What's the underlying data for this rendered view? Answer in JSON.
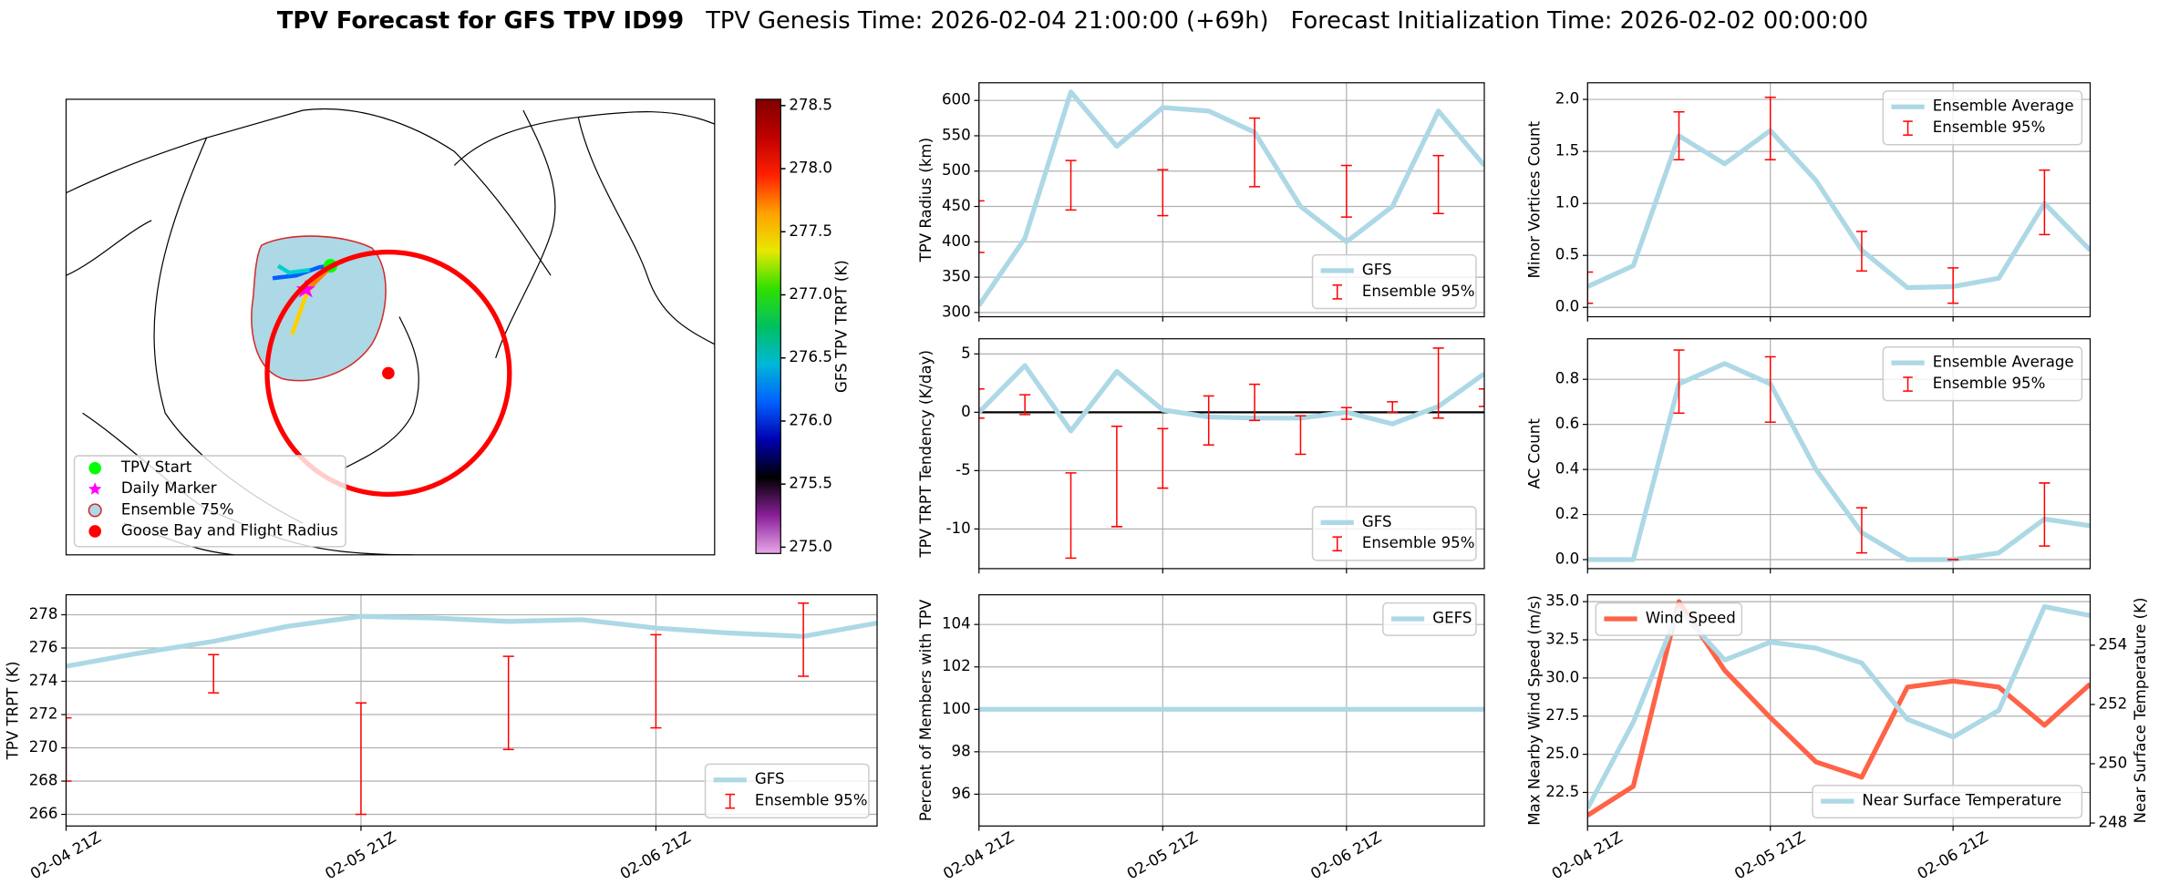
{
  "title": {
    "main": "TPV Forecast for GFS TPV ID99",
    "genesis": "TPV Genesis Time: 2026-02-04 21:00:00 (+69h)",
    "init": "Forecast Initialization Time: 2026-02-02 00:00:00"
  },
  "map": {
    "legend": [
      {
        "name": "TPV Start",
        "color": "#00ff00"
      },
      {
        "name": "Daily Marker",
        "color": "#ff00ff"
      },
      {
        "name": "Ensemble 75%",
        "color": "#add8e6",
        "edgecolor": "#d62728"
      },
      {
        "name": "Goose Bay and Flight Radius",
        "color": "#ff0000"
      }
    ]
  },
  "colorbar": {
    "label": "GFS TPV TRPT (K)",
    "lim": [
      274.95,
      278.55
    ],
    "ticks": [
      {
        "value": 275,
        "label": "275.0"
      },
      275.5,
      {
        "value": 276,
        "label": "276.0"
      },
      276.5,
      {
        "value": 277,
        "label": "277.0"
      },
      277.5,
      {
        "value": 278,
        "label": "278.0"
      },
      278.5
    ],
    "colors": [
      "#e8a8e8",
      "#8a1f9a",
      "#000000",
      "#0000b0",
      "#0060ff",
      "#00b8d8",
      "#00c060",
      "#30e000",
      "#e8e800",
      "#ffa000",
      "#ff2000",
      "#c00000",
      "#800000"
    ]
  },
  "chart_data": [
    {
      "type": "line",
      "ylabel": "TPV Radius (km)",
      "xlim": [
        0,
        66
      ],
      "xticks": [
        0,
        24,
        48
      ],
      "ylim": [
        294,
        625
      ],
      "yticks": [
        300,
        350,
        400,
        450,
        500,
        550,
        600
      ],
      "grid": true,
      "legend": "lower right",
      "series": [
        {
          "name": "GFS",
          "color": "#add8e6",
          "x": [
            0,
            6,
            12,
            18,
            24,
            30,
            36,
            42,
            48,
            54,
            60,
            66
          ],
          "values": [
            310,
            405,
            612,
            535,
            590,
            585,
            555,
            450,
            400,
            450,
            585,
            508
          ]
        },
        {
          "name": "Ensemble 95%",
          "type": "errorbar",
          "color": "#ff0000",
          "x": [
            0,
            12,
            24,
            36,
            48,
            60
          ],
          "low": [
            385,
            445,
            437,
            478,
            435,
            440
          ],
          "high": [
            458,
            515,
            502,
            575,
            508,
            522
          ]
        }
      ]
    },
    {
      "type": "line",
      "ylabel": "TPV TRPT Tendency (K/day)",
      "xlim": [
        0,
        66
      ],
      "xticks": [
        0,
        24,
        48
      ],
      "ylim": [
        -13.4,
        6.3
      ],
      "yticks": [
        -10,
        -5,
        0,
        5
      ],
      "grid": true,
      "legend": "lower right",
      "hline": 0,
      "series": [
        {
          "name": "GFS",
          "color": "#add8e6",
          "x": [
            0,
            6,
            12,
            18,
            24,
            30,
            36,
            42,
            48,
            54,
            60,
            66
          ],
          "values": [
            0,
            4,
            -1.6,
            3.5,
            0.2,
            -0.4,
            -0.5,
            -0.5,
            0,
            -1.0,
            0.5,
            3.3
          ]
        },
        {
          "name": "Ensemble 95%",
          "type": "errorbar",
          "color": "#ff0000",
          "x": [
            0,
            6,
            12,
            18,
            24,
            30,
            36,
            42,
            48,
            54,
            60,
            66
          ],
          "low": [
            -0.5,
            -0.2,
            -12.5,
            -9.8,
            -6.5,
            -2.8,
            -0.7,
            -3.6,
            -0.6,
            0,
            -0.5,
            0.5
          ],
          "high": [
            2,
            1.5,
            -5.2,
            -1.2,
            -1.4,
            1.4,
            2.4,
            -0.3,
            0.4,
            0.9,
            5.5,
            2
          ]
        }
      ]
    },
    {
      "type": "line",
      "ylabel": "Percent of Members with TPV",
      "xlim": [
        0,
        66
      ],
      "xticks": [
        {
          "value": 0,
          "label": "02-04 21Z"
        },
        {
          "value": 24,
          "label": "02-05 21Z"
        },
        {
          "value": 48,
          "label": "02-06 21Z"
        }
      ],
      "ylim": [
        94.5,
        105.4
      ],
      "yticks": [
        96,
        98,
        100,
        102,
        104
      ],
      "grid": true,
      "legend": "upper right",
      "series": [
        {
          "name": "GEFS",
          "color": "#add8e6",
          "x": [
            0,
            6,
            12,
            18,
            24,
            30,
            36,
            42,
            48,
            54,
            60,
            66
          ],
          "values": [
            100,
            100,
            100,
            100,
            100,
            100,
            100,
            100,
            100,
            100,
            100,
            100
          ]
        }
      ]
    },
    {
      "type": "line",
      "ylabel": "Minor Vortices Count",
      "xlim": [
        0,
        66
      ],
      "xticks": [
        0,
        24,
        48
      ],
      "ylim": [
        -0.09,
        2.16
      ],
      "yticks": [
        {
          "value": 0,
          "label": "0.0"
        },
        0.5,
        {
          "value": 1,
          "label": "1.0"
        },
        1.5,
        {
          "value": 2,
          "label": "2.0"
        }
      ],
      "grid": true,
      "legend": "upper right",
      "series": [
        {
          "name": "Ensemble Average",
          "color": "#add8e6",
          "x": [
            0,
            6,
            12,
            18,
            24,
            30,
            36,
            42,
            48,
            54,
            60,
            66
          ],
          "values": [
            0.2,
            0.4,
            1.65,
            1.38,
            1.7,
            1.22,
            0.55,
            0.19,
            0.2,
            0.28,
            1.0,
            0.55
          ]
        },
        {
          "name": "Ensemble 95%",
          "type": "errorbar",
          "color": "#ff0000",
          "x": [
            0,
            12,
            24,
            36,
            48,
            60
          ],
          "low": [
            0.04,
            1.42,
            1.42,
            0.35,
            0.04,
            0.7
          ],
          "high": [
            0.34,
            1.88,
            2.02,
            0.73,
            0.38,
            1.32
          ]
        }
      ]
    },
    {
      "type": "line",
      "ylabel": "AC Count",
      "xlim": [
        0,
        66
      ],
      "xticks": [
        0,
        24,
        48
      ],
      "ylim": [
        -0.04,
        0.98
      ],
      "yticks": [
        {
          "value": 0,
          "label": "0.0"
        },
        0.2,
        0.4,
        0.6,
        0.8
      ],
      "grid": true,
      "legend": "upper right",
      "series": [
        {
          "name": "Ensemble Average",
          "color": "#add8e6",
          "x": [
            0,
            6,
            12,
            18,
            24,
            30,
            36,
            42,
            48,
            54,
            60,
            66
          ],
          "values": [
            0,
            0,
            0.78,
            0.87,
            0.78,
            0.4,
            0.12,
            0,
            0,
            0.03,
            0.18,
            0.15
          ]
        },
        {
          "name": "Ensemble 95%",
          "type": "errorbar",
          "color": "#ff0000",
          "x": [
            12,
            24,
            36,
            48,
            60
          ],
          "low": [
            0.65,
            0.61,
            0.03,
            0,
            0.06
          ],
          "high": [
            0.93,
            0.9,
            0.23,
            0,
            0.34
          ]
        }
      ]
    },
    {
      "type": "line",
      "ylabel": "Max Nearby Wind Speed (m/s)",
      "ylabel_color": "#ff6347",
      "y2label": "Near Surface Temperature (K)",
      "y2label_color": "#4169e1",
      "xlim": [
        0,
        66
      ],
      "xticks": [
        {
          "value": 0,
          "label": "02-04 21Z"
        },
        {
          "value": 24,
          "label": "02-05 21Z"
        },
        {
          "value": 48,
          "label": "02-06 21Z"
        }
      ],
      "ylim": [
        20.3,
        35.45
      ],
      "yticks": [
        22.5,
        {
          "value": 25,
          "label": "25.0"
        },
        27.5,
        {
          "value": 30,
          "label": "30.0"
        },
        32.5,
        {
          "value": 35,
          "label": "35.0"
        }
      ],
      "y2lim": [
        247.9,
        255.7
      ],
      "y2ticks": [
        248,
        250,
        252,
        254
      ],
      "grid": true,
      "series": [
        {
          "name": "Wind Speed",
          "color": "#ff6347",
          "legend": "upper left",
          "x": [
            0,
            6,
            12,
            18,
            24,
            30,
            36,
            42,
            48,
            54,
            60,
            66
          ],
          "values": [
            21.0,
            22.9,
            35.0,
            30.5,
            27.4,
            24.5,
            23.5,
            29.4,
            29.8,
            29.4,
            26.9,
            29.6
          ]
        },
        {
          "name": "Near Surface Temperature",
          "color": "#add8e6",
          "axis": "y2",
          "legend": "lower right",
          "x": [
            0,
            6,
            12,
            18,
            24,
            30,
            36,
            42,
            48,
            54,
            60,
            66
          ],
          "values": [
            248.5,
            251.4,
            255.2,
            253.5,
            254.1,
            253.9,
            253.4,
            251.5,
            250.9,
            251.8,
            255.3,
            255.0
          ]
        }
      ]
    },
    {
      "type": "line",
      "ylabel": "TPV TRPT (K)",
      "xlim": [
        0,
        66
      ],
      "xticks": [
        {
          "value": 0,
          "label": "02-04 21Z"
        },
        {
          "value": 24,
          "label": "02-05 21Z"
        },
        {
          "value": 48,
          "label": "02-06 21Z"
        }
      ],
      "ylim": [
        265.3,
        279.2
      ],
      "yticks": [
        266,
        268,
        270,
        272,
        274,
        276,
        278
      ],
      "grid": true,
      "legend": "lower right",
      "series": [
        {
          "name": "GFS",
          "color": "#add8e6",
          "x": [
            0,
            6,
            12,
            18,
            24,
            30,
            36,
            42,
            48,
            54,
            60,
            66
          ],
          "values": [
            274.9,
            275.7,
            276.4,
            277.3,
            277.9,
            277.8,
            277.6,
            277.7,
            277.2,
            276.9,
            276.7,
            277.5
          ]
        },
        {
          "name": "Ensemble 95%",
          "type": "errorbar",
          "color": "#ff0000",
          "x": [
            0,
            12,
            24,
            36,
            48,
            60
          ],
          "low": [
            268.0,
            273.3,
            266.0,
            269.9,
            271.2,
            274.3
          ],
          "high": [
            271.8,
            275.6,
            272.7,
            275.5,
            276.8,
            278.7
          ]
        }
      ]
    }
  ]
}
